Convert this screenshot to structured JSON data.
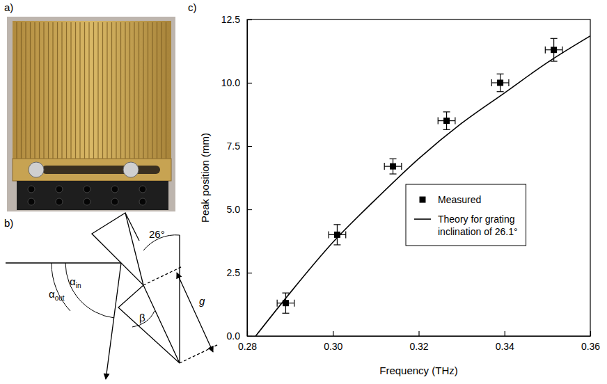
{
  "panel_labels": [
    "a)",
    "b)",
    "c)"
  ],
  "diagram": {
    "angle_label": "26°",
    "alpha_in": {
      "symbol": "α",
      "sub": "in"
    },
    "alpha_out": {
      "symbol": "α",
      "sub": "out"
    },
    "beta": "β",
    "g": "g"
  },
  "chart_data": {
    "type": "scatter",
    "x_label": "Frequency (THz)",
    "y_label": "Peak position (mm)",
    "xlim": [
      0.28,
      0.36
    ],
    "xticks": [
      0.28,
      {
        "value": 0.3,
        "label": "0.30"
      },
      0.32,
      0.34,
      0.36
    ],
    "ylim": [
      0,
      12.5
    ],
    "yticks": [
      {
        "value": 0,
        "label": "0.0"
      },
      2.5,
      {
        "value": 5,
        "label": "5.0"
      },
      7.5,
      {
        "value": 10,
        "label": "10.0"
      },
      12.5
    ],
    "legend": "right",
    "series": [
      {
        "name": "Measured",
        "type": "scatter",
        "marker": "square",
        "color": "#000000",
        "x": [
          0.289,
          0.301,
          0.314,
          0.3265,
          0.339,
          0.3515
        ],
        "values": [
          1.3,
          4.0,
          6.7,
          8.5,
          10.0,
          11.3
        ],
        "x_error": [
          0.002,
          0.002,
          0.002,
          0.002,
          0.002,
          0.002
        ],
        "y_error": [
          0.4,
          0.4,
          0.3,
          0.35,
          0.35,
          0.45
        ]
      },
      {
        "name": "Theory for grating inclination of 26.1°",
        "type": "line",
        "line_style": "solid",
        "color": "#000000",
        "x": [
          0.282,
          0.29,
          0.3,
          0.31,
          0.32,
          0.33,
          0.34,
          0.35,
          0.36
        ],
        "values": [
          0,
          1.7,
          3.7,
          5.4,
          7.0,
          8.4,
          9.6,
          10.8,
          11.85
        ]
      }
    ]
  }
}
